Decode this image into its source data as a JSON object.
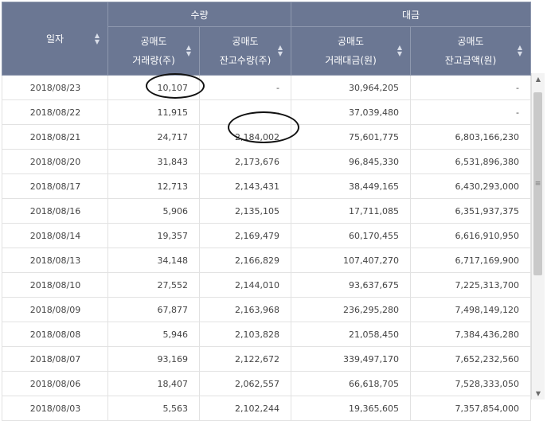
{
  "header": {
    "date_label": "일자",
    "group_volume": "수량",
    "group_amount": "대금",
    "col1": [
      "공매도",
      "거래량(주)"
    ],
    "col2": [
      "공매도",
      "잔고수량(주)"
    ],
    "col3": [
      "공매도",
      "거래대금(원)"
    ],
    "col4": [
      "공매도",
      "잔고금액(원)"
    ]
  },
  "icons": {
    "sort": "sort-updown-icon",
    "scroll_up": "arrow-up-icon",
    "scroll_down": "arrow-down-icon",
    "grip": "scroll-grip-icon"
  },
  "rows": [
    {
      "date": "2018/08/23",
      "vol": "10,107",
      "bal": "-",
      "amt": "30,964,205",
      "bal_amt": "-"
    },
    {
      "date": "2018/08/22",
      "vol": "11,915",
      "bal": "-",
      "amt": "37,039,480",
      "bal_amt": "-"
    },
    {
      "date": "2018/08/21",
      "vol": "24,717",
      "bal": "2,184,002",
      "amt": "75,601,775",
      "bal_amt": "6,803,166,230"
    },
    {
      "date": "2018/08/20",
      "vol": "31,843",
      "bal": "2,173,676",
      "amt": "96,845,330",
      "bal_amt": "6,531,896,380"
    },
    {
      "date": "2018/08/17",
      "vol": "12,713",
      "bal": "2,143,431",
      "amt": "38,449,165",
      "bal_amt": "6,430,293,000"
    },
    {
      "date": "2018/08/16",
      "vol": "5,906",
      "bal": "2,135,105",
      "amt": "17,711,085",
      "bal_amt": "6,351,937,375"
    },
    {
      "date": "2018/08/14",
      "vol": "19,357",
      "bal": "2,169,479",
      "amt": "60,170,455",
      "bal_amt": "6,616,910,950"
    },
    {
      "date": "2018/08/13",
      "vol": "34,148",
      "bal": "2,166,829",
      "amt": "107,407,270",
      "bal_amt": "6,717,169,900"
    },
    {
      "date": "2018/08/10",
      "vol": "27,552",
      "bal": "2,144,010",
      "amt": "93,637,675",
      "bal_amt": "7,225,313,700"
    },
    {
      "date": "2018/08/09",
      "vol": "67,877",
      "bal": "2,163,968",
      "amt": "236,295,280",
      "bal_amt": "7,498,149,120"
    },
    {
      "date": "2018/08/08",
      "vol": "5,946",
      "bal": "2,103,828",
      "amt": "21,058,450",
      "bal_amt": "7,384,436,280"
    },
    {
      "date": "2018/08/07",
      "vol": "93,169",
      "bal": "2,122,672",
      "amt": "339,497,170",
      "bal_amt": "7,652,232,560"
    },
    {
      "date": "2018/08/06",
      "vol": "18,407",
      "bal": "2,062,557",
      "amt": "66,618,705",
      "bal_amt": "7,528,333,050"
    },
    {
      "date": "2018/08/03",
      "vol": "5,563",
      "bal": "2,102,244",
      "amt": "19,365,605",
      "bal_amt": "7,357,854,000"
    }
  ]
}
